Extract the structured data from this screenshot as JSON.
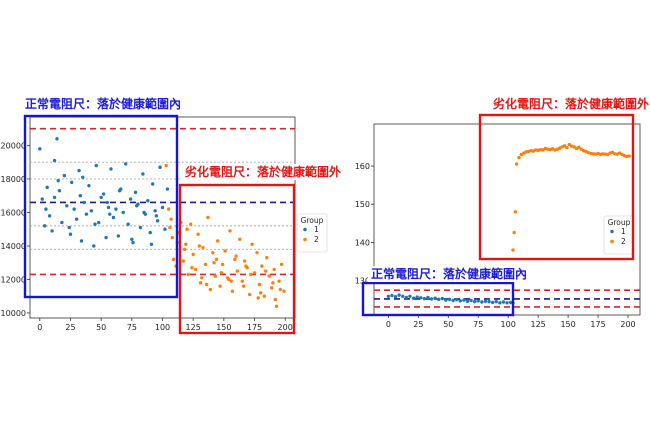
{
  "annotations": {
    "normal_range": "正常電阻尺：落於健康範圍內",
    "degraded_range": "劣化電阻尺：落於健康範圍外"
  },
  "colors": {
    "group1": "#1f77b4",
    "group2": "#ff7f0e",
    "threshold_red": "#d62728",
    "mean_navy": "#1a1a8c",
    "highlight_blue": "#1515d6",
    "highlight_red": "#e01515",
    "grid_gray": "#aaaaaa"
  },
  "chart_data": [
    {
      "type": "scatter",
      "title": "",
      "xlabel": "",
      "ylabel": "",
      "xlim": [
        -8,
        208
      ],
      "ylim": [
        9700,
        21700
      ],
      "xticks": [
        0,
        25,
        50,
        75,
        100,
        125,
        150,
        175,
        200
      ],
      "yticks": [
        10000,
        12000,
        14000,
        16000,
        18000,
        20000
      ],
      "xtick_labels": [
        "0",
        "25",
        "50",
        "75",
        "100",
        "125",
        "150",
        "175",
        "200"
      ],
      "ytick_labels": [
        "10000",
        "12000",
        "14000",
        "16000",
        "18000",
        "20000"
      ],
      "hlines": [
        {
          "y": 21000,
          "style": "red-dash"
        },
        {
          "y": 16600,
          "style": "navy-dash"
        },
        {
          "y": 12300,
          "style": "red-dash"
        },
        {
          "y": 19000,
          "style": "gray-dotted"
        },
        {
          "y": 18000,
          "style": "gray-dotted"
        },
        {
          "y": 15200,
          "style": "gray-dotted"
        },
        {
          "y": 13800,
          "style": "gray-dotted"
        }
      ],
      "legend": {
        "title": "Group",
        "placement": "right",
        "entries": [
          "1",
          "2"
        ]
      },
      "series": [
        {
          "name": "1",
          "x": [
            0,
            2,
            4,
            6,
            8,
            10,
            12,
            14,
            16,
            18,
            20,
            22,
            24,
            26,
            28,
            30,
            32,
            34,
            36,
            38,
            40,
            42,
            44,
            46,
            48,
            50,
            52,
            54,
            56,
            58,
            60,
            62,
            64,
            66,
            68,
            70,
            72,
            74,
            76,
            78,
            80,
            82,
            84,
            86,
            88,
            90,
            92,
            94,
            96,
            98,
            100,
            102,
            104,
            5,
            15,
            25,
            35,
            45,
            55,
            65,
            75,
            85,
            95,
            12,
            33,
            57,
            79,
            91
          ],
          "y": [
            19800,
            16800,
            15200,
            17500,
            15800,
            14900,
            16900,
            20400,
            17300,
            15400,
            18200,
            16400,
            15100,
            17800,
            16200,
            15600,
            18500,
            14300,
            16600,
            15900,
            17600,
            16100,
            14000,
            18800,
            15400,
            16900,
            17100,
            14500,
            16300,
            18600,
            15700,
            16200,
            14600,
            17400,
            16000,
            18900,
            15300,
            16800,
            14200,
            17200,
            16500,
            15100,
            18300,
            15900,
            16700,
            14800,
            17700,
            16100,
            15500,
            18700,
            16300,
            15000,
            17400,
            16200,
            17900,
            14700,
            18100,
            15300,
            16600,
            17300,
            14400,
            16000,
            15800,
            19100,
            17000,
            15900,
            16400,
            14100
          ]
        },
        {
          "name": "2",
          "x": [
            103,
            105,
            107,
            109,
            111,
            113,
            115,
            117,
            119,
            121,
            123,
            125,
            127,
            129,
            131,
            133,
            135,
            137,
            139,
            141,
            143,
            145,
            147,
            149,
            151,
            153,
            155,
            157,
            159,
            161,
            163,
            165,
            167,
            169,
            171,
            173,
            175,
            177,
            179,
            181,
            183,
            185,
            187,
            189,
            191,
            193,
            195,
            197,
            199,
            106,
            112,
            118,
            124,
            130,
            136,
            142,
            148,
            154,
            160,
            166,
            172,
            178,
            184,
            190,
            196,
            108,
            120,
            132,
            144,
            156,
            168,
            180,
            192
          ],
          "y": [
            18800,
            16200,
            15600,
            13200,
            12800,
            14800,
            15400,
            13100,
            14100,
            12300,
            15300,
            13500,
            12600,
            14700,
            11800,
            13900,
            12900,
            15700,
            11400,
            13600,
            12200,
            14300,
            11600,
            12900,
            13700,
            12100,
            14900,
            11300,
            13200,
            12500,
            14400,
            11900,
            13100,
            12700,
            11100,
            14100,
            12400,
            13600,
            11700,
            12800,
            11000,
            13300,
            12200,
            11500,
            12600,
            10400,
            11900,
            12900,
            11300,
            15100,
            14200,
            13800,
            12700,
            14000,
            11700,
            13000,
            12400,
            12000,
            13400,
            11600,
            12300,
            10900,
            12500,
            11800,
            11400,
            14500,
            15000,
            12100,
            13200,
            11900,
            12800,
            11200,
            10800
          ]
        }
      ]
    },
    {
      "type": "scatter",
      "title": "",
      "xlabel": "",
      "ylabel": "",
      "xlim": [
        -12,
        210
      ],
      "ylim": [
        121,
        171
      ],
      "xticks": [
        0,
        25,
        50,
        75,
        100,
        125,
        150,
        175,
        200
      ],
      "yticks": [
        130,
        140,
        150,
        160
      ],
      "xtick_labels": [
        "0",
        "25",
        "50",
        "75",
        "100",
        "125",
        "150",
        "175",
        "200"
      ],
      "ytick_labels": [
        "130",
        "140",
        "150",
        "160"
      ],
      "hlines": [
        {
          "y": 127.5,
          "style": "red-dash"
        },
        {
          "y": 125.2,
          "style": "navy-dash"
        },
        {
          "y": 123.1,
          "style": "red-dash"
        }
      ],
      "legend": {
        "title": "Group",
        "placement": "right",
        "entries": [
          "1",
          "2"
        ]
      },
      "series": [
        {
          "name": "1",
          "x": [
            0,
            3,
            6,
            9,
            12,
            15,
            18,
            21,
            24,
            27,
            30,
            33,
            36,
            39,
            42,
            45,
            48,
            51,
            54,
            57,
            60,
            63,
            66,
            69,
            72,
            75,
            78,
            81,
            84,
            87,
            90,
            93,
            96,
            99,
            102,
            104
          ],
          "y": [
            125.9,
            126.1,
            125.8,
            126.2,
            125.9,
            125.6,
            125.9,
            125.4,
            125.7,
            125.5,
            125.3,
            125.6,
            125.2,
            125.4,
            125.1,
            125.3,
            124.9,
            125.1,
            124.8,
            125.0,
            124.7,
            124.9,
            124.6,
            124.8,
            124.5,
            124.7,
            124.4,
            124.6,
            124.5,
            124.3,
            124.5,
            124.2,
            124.4,
            124.2,
            124.3,
            124.1
          ]
        },
        {
          "name": "2",
          "x": [
            104,
            105,
            106,
            107,
            109,
            111,
            113,
            115,
            117,
            119,
            121,
            123,
            125,
            127,
            129,
            131,
            133,
            135,
            137,
            139,
            141,
            143,
            145,
            147,
            149,
            151,
            153,
            155,
            157,
            159,
            161,
            163,
            165,
            167,
            169,
            171,
            173,
            175,
            177,
            179,
            181,
            183,
            185,
            187,
            189,
            191,
            193,
            195,
            197,
            199,
            201
          ],
          "y": [
            138.0,
            142.6,
            148.0,
            160.5,
            162.2,
            163.0,
            163.4,
            163.7,
            163.8,
            164.0,
            163.9,
            164.2,
            164.1,
            164.3,
            164.2,
            164.6,
            164.4,
            164.3,
            164.5,
            164.2,
            164.4,
            164.7,
            165.0,
            165.3,
            164.8,
            165.6,
            165.2,
            165.0,
            164.6,
            164.9,
            164.4,
            164.0,
            163.8,
            163.5,
            163.3,
            163.2,
            163.1,
            163.3,
            163.0,
            163.2,
            163.1,
            163.0,
            163.4,
            163.6,
            163.2,
            163.1,
            163.4,
            163.0,
            162.7,
            162.5,
            162.6
          ]
        }
      ]
    }
  ]
}
